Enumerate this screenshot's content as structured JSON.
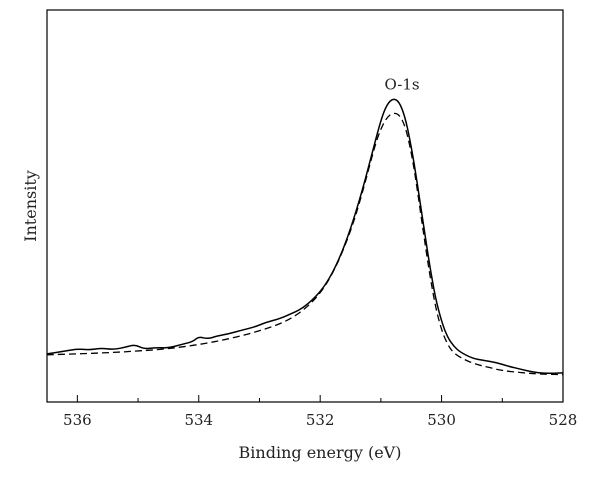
{
  "chart_data": {
    "type": "line",
    "xlabel": "Binding energy (eV)",
    "ylabel": "Intensity",
    "xlim": [
      536.5,
      528
    ],
    "x_reversed": true,
    "ylim": [
      0,
      1
    ],
    "y_ticks_shown": false,
    "x_ticks": [
      "536",
      "534",
      "532",
      "530",
      "528"
    ],
    "grid": false,
    "annotations": [
      {
        "text": "O-1s",
        "x": 530.8,
        "y": 0.995
      }
    ],
    "series": [
      {
        "style": "solid",
        "color": "#000000",
        "points": [
          [
            536.5,
            0.108
          ],
          [
            536.2,
            0.118
          ],
          [
            536.0,
            0.125
          ],
          [
            535.8,
            0.122
          ],
          [
            535.6,
            0.128
          ],
          [
            535.4,
            0.123
          ],
          [
            535.2,
            0.132
          ],
          [
            535.05,
            0.14
          ],
          [
            534.9,
            0.125
          ],
          [
            534.7,
            0.13
          ],
          [
            534.5,
            0.128
          ],
          [
            534.3,
            0.14
          ],
          [
            534.1,
            0.15
          ],
          [
            534.0,
            0.168
          ],
          [
            533.85,
            0.16
          ],
          [
            533.7,
            0.17
          ],
          [
            533.5,
            0.178
          ],
          [
            533.3,
            0.19
          ],
          [
            533.1,
            0.2
          ],
          [
            532.9,
            0.217
          ],
          [
            532.7,
            0.228
          ],
          [
            532.5,
            0.245
          ],
          [
            532.3,
            0.265
          ],
          [
            532.1,
            0.3
          ],
          [
            531.9,
            0.35
          ],
          [
            531.7,
            0.43
          ],
          [
            531.5,
            0.54
          ],
          [
            531.3,
            0.68
          ],
          [
            531.15,
            0.8
          ],
          [
            531.0,
            0.92
          ],
          [
            530.9,
            0.975
          ],
          [
            530.8,
            0.995
          ],
          [
            530.7,
            0.985
          ],
          [
            530.6,
            0.93
          ],
          [
            530.5,
            0.83
          ],
          [
            530.4,
            0.7
          ],
          [
            530.3,
            0.56
          ],
          [
            530.2,
            0.42
          ],
          [
            530.1,
            0.3
          ],
          [
            530.0,
            0.22
          ],
          [
            529.9,
            0.165
          ],
          [
            529.8,
            0.135
          ],
          [
            529.7,
            0.115
          ],
          [
            529.5,
            0.093
          ],
          [
            529.3,
            0.085
          ],
          [
            529.1,
            0.078
          ],
          [
            528.9,
            0.065
          ],
          [
            528.7,
            0.055
          ],
          [
            528.5,
            0.045
          ],
          [
            528.3,
            0.04
          ],
          [
            528.0,
            0.042
          ]
        ]
      },
      {
        "style": "dashed",
        "color": "#000000",
        "points": [
          [
            536.5,
            0.105
          ],
          [
            536.0,
            0.108
          ],
          [
            535.5,
            0.112
          ],
          [
            535.0,
            0.118
          ],
          [
            534.5,
            0.126
          ],
          [
            534.0,
            0.14
          ],
          [
            533.5,
            0.16
          ],
          [
            533.0,
            0.187
          ],
          [
            532.5,
            0.225
          ],
          [
            532.1,
            0.29
          ],
          [
            531.8,
            0.38
          ],
          [
            531.5,
            0.53
          ],
          [
            531.3,
            0.67
          ],
          [
            531.1,
            0.83
          ],
          [
            531.0,
            0.89
          ],
          [
            530.9,
            0.93
          ],
          [
            530.8,
            0.945
          ],
          [
            530.7,
            0.94
          ],
          [
            530.6,
            0.9
          ],
          [
            530.5,
            0.81
          ],
          [
            530.4,
            0.68
          ],
          [
            530.3,
            0.53
          ],
          [
            530.2,
            0.39
          ],
          [
            530.1,
            0.27
          ],
          [
            530.0,
            0.19
          ],
          [
            529.9,
            0.14
          ],
          [
            529.8,
            0.11
          ],
          [
            529.6,
            0.085
          ],
          [
            529.4,
            0.07
          ],
          [
            529.2,
            0.06
          ],
          [
            529.0,
            0.05
          ],
          [
            528.7,
            0.043
          ],
          [
            528.4,
            0.038
          ],
          [
            528.0,
            0.036
          ]
        ]
      }
    ]
  }
}
